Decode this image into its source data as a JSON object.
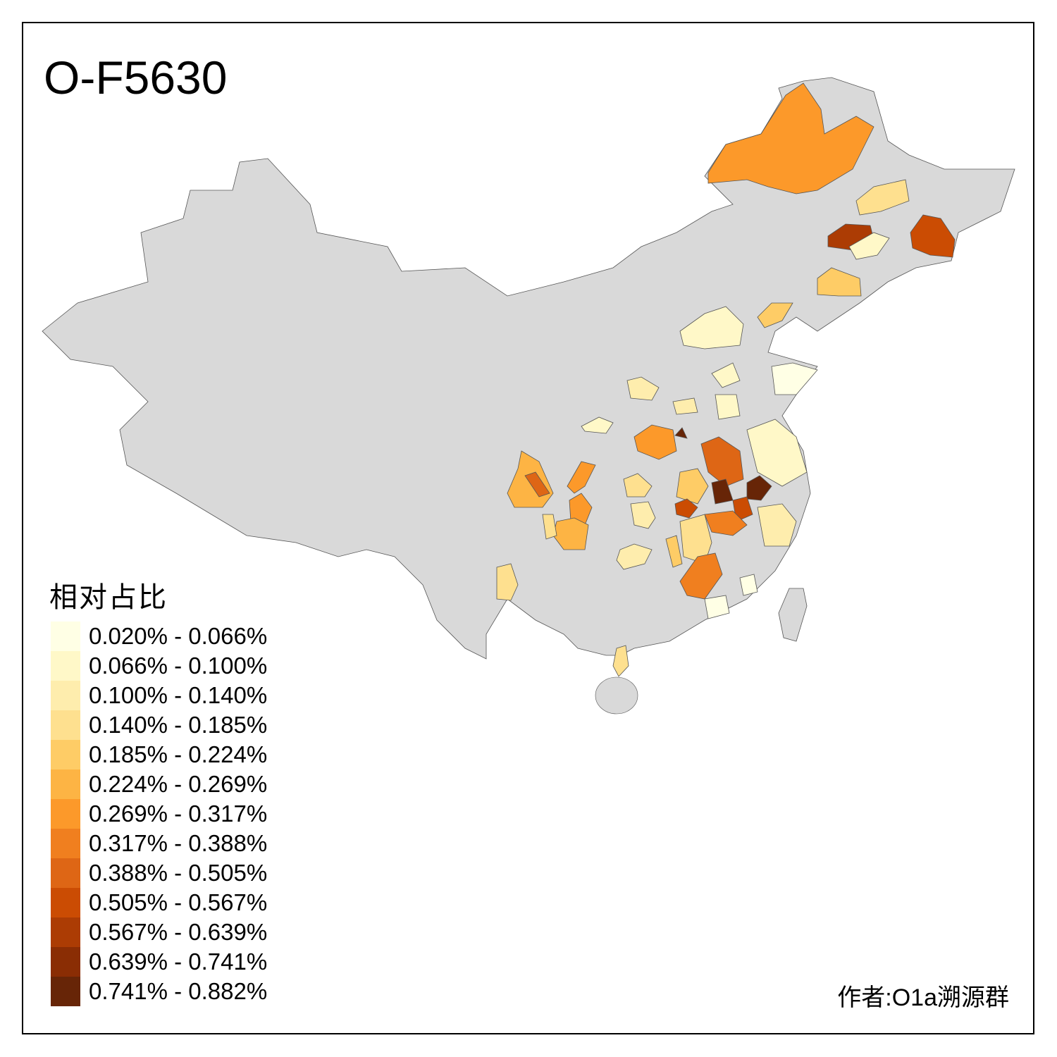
{
  "title": "O-F5630",
  "legend": {
    "title": "相对占比",
    "bins": [
      {
        "label": "0.020% - 0.066%",
        "color": "#FFFFE5"
      },
      {
        "label": "0.066% - 0.100%",
        "color": "#FFF8C8"
      },
      {
        "label": "0.100% - 0.140%",
        "color": "#FEEDAD"
      },
      {
        "label": "0.140% - 0.185%",
        "color": "#FEE08F"
      },
      {
        "label": "0.185% - 0.224%",
        "color": "#FECC66"
      },
      {
        "label": "0.224% - 0.269%",
        "color": "#FDB444"
      },
      {
        "label": "0.269% - 0.317%",
        "color": "#FC992A"
      },
      {
        "label": "0.317% - 0.388%",
        "color": "#F07F1F"
      },
      {
        "label": "0.388% - 0.505%",
        "color": "#DE6615"
      },
      {
        "label": "0.505% - 0.567%",
        "color": "#CB4C03"
      },
      {
        "label": "0.567% - 0.639%",
        "color": "#AC3C04"
      },
      {
        "label": "0.639% - 0.741%",
        "color": "#8A2D04"
      },
      {
        "label": "0.741% - 0.882%",
        "color": "#672507"
      }
    ]
  },
  "colors": {
    "no_data": "#D9D9D9",
    "border": "#555555"
  },
  "credit": "作者:O1a溯源群"
}
